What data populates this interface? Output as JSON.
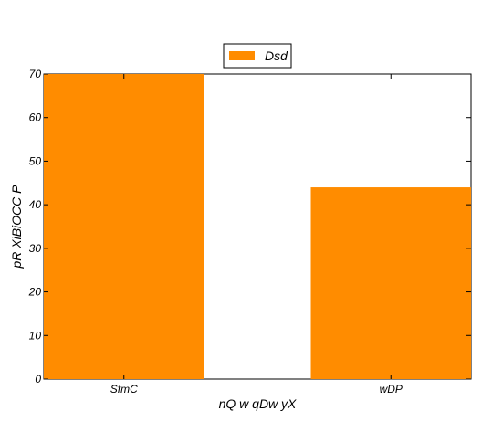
{
  "chart_data": {
    "type": "bar",
    "categories": [
      "SfmC",
      "wDP"
    ],
    "series": [
      {
        "name": "Dsd",
        "values": [
          70,
          44
        ],
        "color": "#ff8c00"
      }
    ],
    "xlabel": "nQ w qDw yX",
    "ylabel": "pR XiBiOCC P",
    "ylim": [
      0,
      70
    ],
    "yticks": [
      0,
      10,
      20,
      30,
      40,
      50,
      60,
      70
    ],
    "legend_position": "top-center",
    "grid": false
  }
}
